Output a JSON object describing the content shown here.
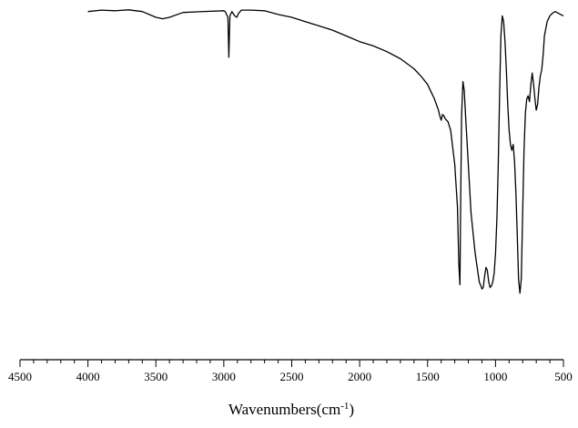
{
  "chart_data": {
    "type": "line",
    "title": "",
    "xlabel": "Wavenumbers(cm",
    "xlabel_sup": "-1",
    "xlabel_close": ")",
    "ylabel": "",
    "xlim": [
      4500,
      500
    ],
    "ylim": [
      0,
      100
    ],
    "x_reversed": true,
    "grid": false,
    "xticks": [
      4500,
      4000,
      3500,
      3000,
      2500,
      2000,
      1500,
      1000,
      500
    ],
    "xtick_labels": [
      "4500",
      "4000",
      "3500",
      "3000",
      "2500",
      "2000",
      "1500",
      "1000",
      "500"
    ],
    "series": [
      {
        "color": "#000000",
        "x": [
          4000,
          3900,
          3800,
          3700,
          3600,
          3500,
          3450,
          3400,
          3300,
          3200,
          3100,
          3000,
          2990,
          2970,
          2963,
          2955,
          2940,
          2920,
          2905,
          2890,
          2870,
          2800,
          2700,
          2600,
          2500,
          2400,
          2300,
          2200,
          2100,
          2000,
          1900,
          1800,
          1700,
          1600,
          1550,
          1500,
          1470,
          1450,
          1420,
          1410,
          1400,
          1390,
          1380,
          1370,
          1350,
          1330,
          1300,
          1280,
          1270,
          1262,
          1258,
          1250,
          1240,
          1230,
          1220,
          1200,
          1180,
          1150,
          1120,
          1100,
          1090,
          1080,
          1070,
          1060,
          1050,
          1040,
          1030,
          1020,
          1010,
          1000,
          990,
          980,
          970,
          960,
          950,
          940,
          930,
          920,
          910,
          900,
          890,
          880,
          870,
          860,
          850,
          840,
          830,
          820,
          810,
          800,
          790,
          780,
          770,
          760,
          750,
          740,
          730,
          720,
          710,
          700,
          690,
          680,
          670,
          660,
          650,
          640,
          620,
          600,
          580,
          560,
          540,
          520,
          500
        ],
        "y": [
          98.5,
          99,
          98.8,
          99.1,
          98.5,
          96.5,
          96,
          96.5,
          98.2,
          98.4,
          98.6,
          98.8,
          98.5,
          96.5,
          82.5,
          97,
          98.5,
          97,
          96.5,
          98,
          99,
          99,
          98.8,
          97.5,
          96.5,
          95,
          93.5,
          92,
          90,
          88,
          86.5,
          84.5,
          82,
          78.5,
          76,
          73,
          70,
          68,
          64,
          62,
          60.5,
          62.5,
          62,
          61,
          60,
          57,
          45,
          30,
          10,
          3,
          25,
          62,
          74,
          71,
          62,
          45,
          28,
          14,
          4,
          1.5,
          2,
          6,
          9,
          8,
          4,
          2,
          2.5,
          4,
          7,
          14,
          26,
          45,
          70,
          90,
          97,
          95,
          88,
          78,
          66,
          57,
          52,
          50,
          52,
          46,
          35,
          20,
          5,
          0,
          5,
          28,
          50,
          63,
          68,
          69,
          67,
          73,
          77,
          73,
          68,
          64,
          66,
          72,
          76,
          78,
          83,
          90,
          95,
          97,
          98,
          98.5,
          98,
          97.5,
          97
        ]
      }
    ]
  }
}
